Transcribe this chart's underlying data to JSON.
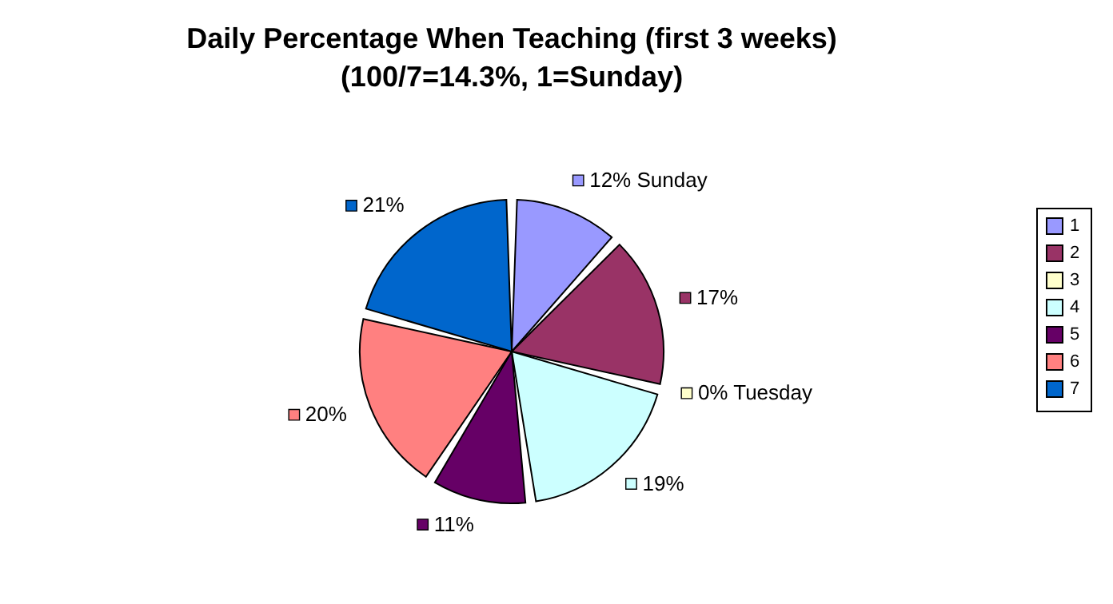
{
  "chart_data": {
    "type": "pie",
    "title": "Daily Percentage When Teaching (first 3 weeks)",
    "subtitle": "(100/7=14.3%, 1=Sunday)",
    "categories": [
      "1",
      "2",
      "3",
      "4",
      "5",
      "6",
      "7"
    ],
    "values": [
      12,
      17,
      0,
      19,
      11,
      20,
      21
    ],
    "colors": [
      "#9999ff",
      "#993366",
      "#ffffcc",
      "#ccffff",
      "#660066",
      "#ff8080",
      "#0066cc"
    ],
    "value_labels": [
      "12% Sunday",
      "17%",
      "0% Tuesday",
      "19%",
      "11%",
      "20%",
      "21%"
    ],
    "legend": "right"
  }
}
